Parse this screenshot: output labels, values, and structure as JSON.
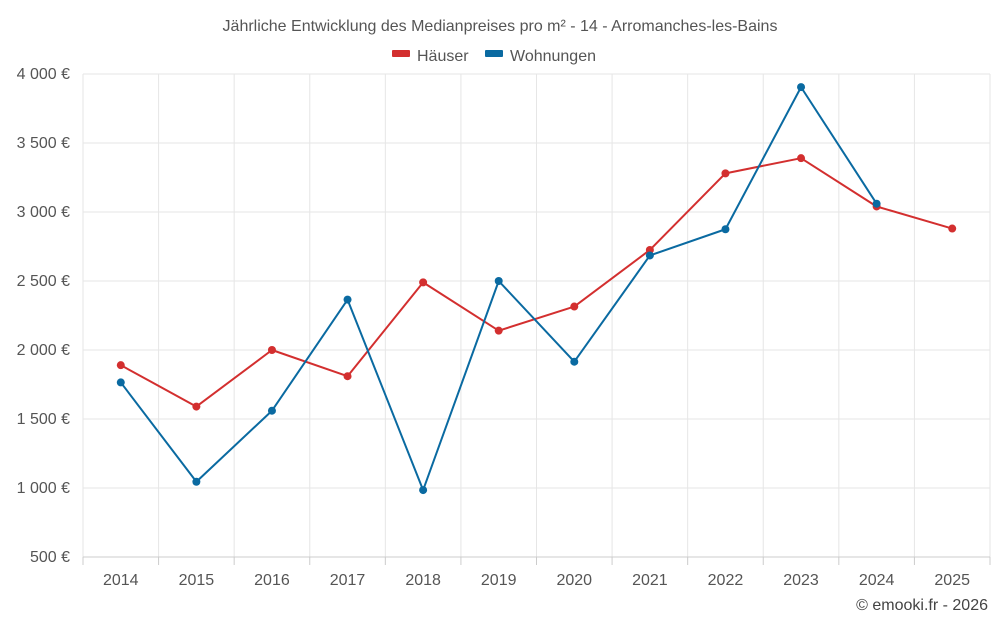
{
  "chart_data": {
    "type": "line",
    "title": "Jährliche Entwicklung des Medianpreises pro m² - 14 - Arromanches-les-Bains",
    "categories": [
      "2014",
      "2015",
      "2016",
      "2017",
      "2018",
      "2019",
      "2020",
      "2021",
      "2022",
      "2023",
      "2024",
      "2025"
    ],
    "y_ticks": [
      "500 €",
      "1 000 €",
      "1 500 €",
      "2 000 €",
      "2 500 €",
      "3 000 €",
      "3 500 €",
      "4 000 €"
    ],
    "ylim": [
      500,
      4000
    ],
    "xlabel": "",
    "ylabel": "",
    "grid": true,
    "legend_position": "top-center",
    "series": [
      {
        "name": "Häuser",
        "color": "#d32f2f",
        "values": [
          1890,
          1590,
          2000,
          1810,
          2490,
          2140,
          2315,
          2725,
          3280,
          3390,
          3040,
          2880
        ]
      },
      {
        "name": "Wohnungen",
        "color": "#0a6aa1",
        "values": [
          1765,
          1045,
          1560,
          2365,
          985,
          2500,
          1915,
          2685,
          2875,
          3905,
          3060,
          null
        ]
      }
    ]
  },
  "credit": "© emooki.fr - 2026"
}
